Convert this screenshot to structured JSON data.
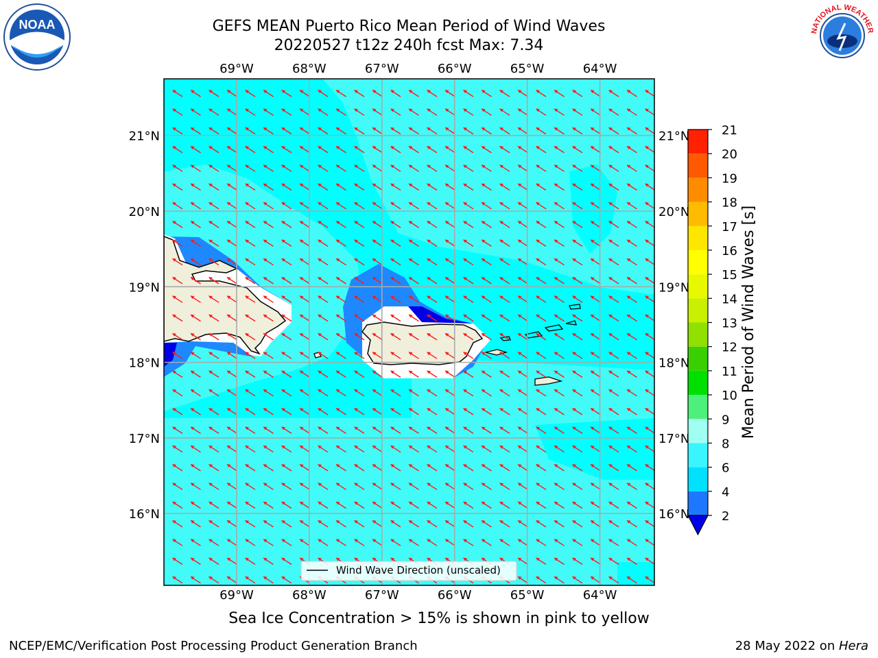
{
  "header": {
    "title_line1": "GEFS MEAN Puerto Rico Mean Period of Wind Waves",
    "title_line2": "20220527 t12z 240h fcst   Max: 7.34"
  },
  "logos": {
    "left": {
      "name": "noaa-logo",
      "text": "NOAA"
    },
    "right": {
      "name": "nws-logo",
      "text": "NATIONAL WEATHER SERVICE"
    }
  },
  "chart_data": {
    "type": "heatmap",
    "title": "GEFS MEAN Puerto Rico Mean Period of Wind Waves",
    "longitude_ticks": [
      "69°W",
      "68°W",
      "67°W",
      "66°W",
      "65°W",
      "64°W"
    ],
    "longitude_values": [
      -69,
      -68,
      -67,
      -66,
      -65,
      -64
    ],
    "latitude_ticks": [
      "21°N",
      "20°N",
      "19°N",
      "18°N",
      "17°N",
      "16°N"
    ],
    "latitude_values": [
      21,
      20,
      19,
      18,
      17,
      16
    ],
    "lon_range": [
      -70,
      -63.25
    ],
    "lat_range": [
      15.05,
      21.75
    ],
    "grid": true,
    "legend": {
      "label": "Wind Wave Direction (unscaled)",
      "placement": "bottom-center"
    },
    "arrow_direction": "toward west-northwest",
    "colorbar": {
      "label": "Mean Period of Wind Waves [s]",
      "ticks": [
        "2",
        "4",
        "6",
        "8",
        "9",
        "10",
        "11",
        "12",
        "13",
        "14",
        "15",
        "16",
        "17",
        "18",
        "19",
        "20",
        "21"
      ],
      "levels": [
        2,
        4,
        6,
        8,
        9,
        10,
        11,
        12,
        13,
        14,
        15,
        16,
        17,
        18,
        19,
        20,
        21
      ],
      "colors": [
        "#1e78ff",
        "#00e0ff",
        "#38f5ff",
        "#9ffff0",
        "#4df07a",
        "#00e000",
        "#3acf00",
        "#90e000",
        "#c8f000",
        "#e8f800",
        "#ffff00",
        "#ffe600",
        "#ffbb00",
        "#ff8c00",
        "#ff5a00",
        "#ff2200",
        "#ff0000"
      ],
      "under_color": "#0000e6"
    },
    "fill_colors": {
      "ocean_main": "#00ffff",
      "ocean_light": "#42fbf8",
      "near_coast": "#1e88ff",
      "deep_blue": "#0000e6",
      "land": "#efefdc"
    }
  },
  "footer": {
    "subtitle": "Sea Ice Concentration > 15% is shown in pink to yellow",
    "left": "NCEP/EMC/Verification Post Processing Product Generation Branch",
    "right_date": "28 May 2022 on ",
    "right_host": "Hera"
  }
}
